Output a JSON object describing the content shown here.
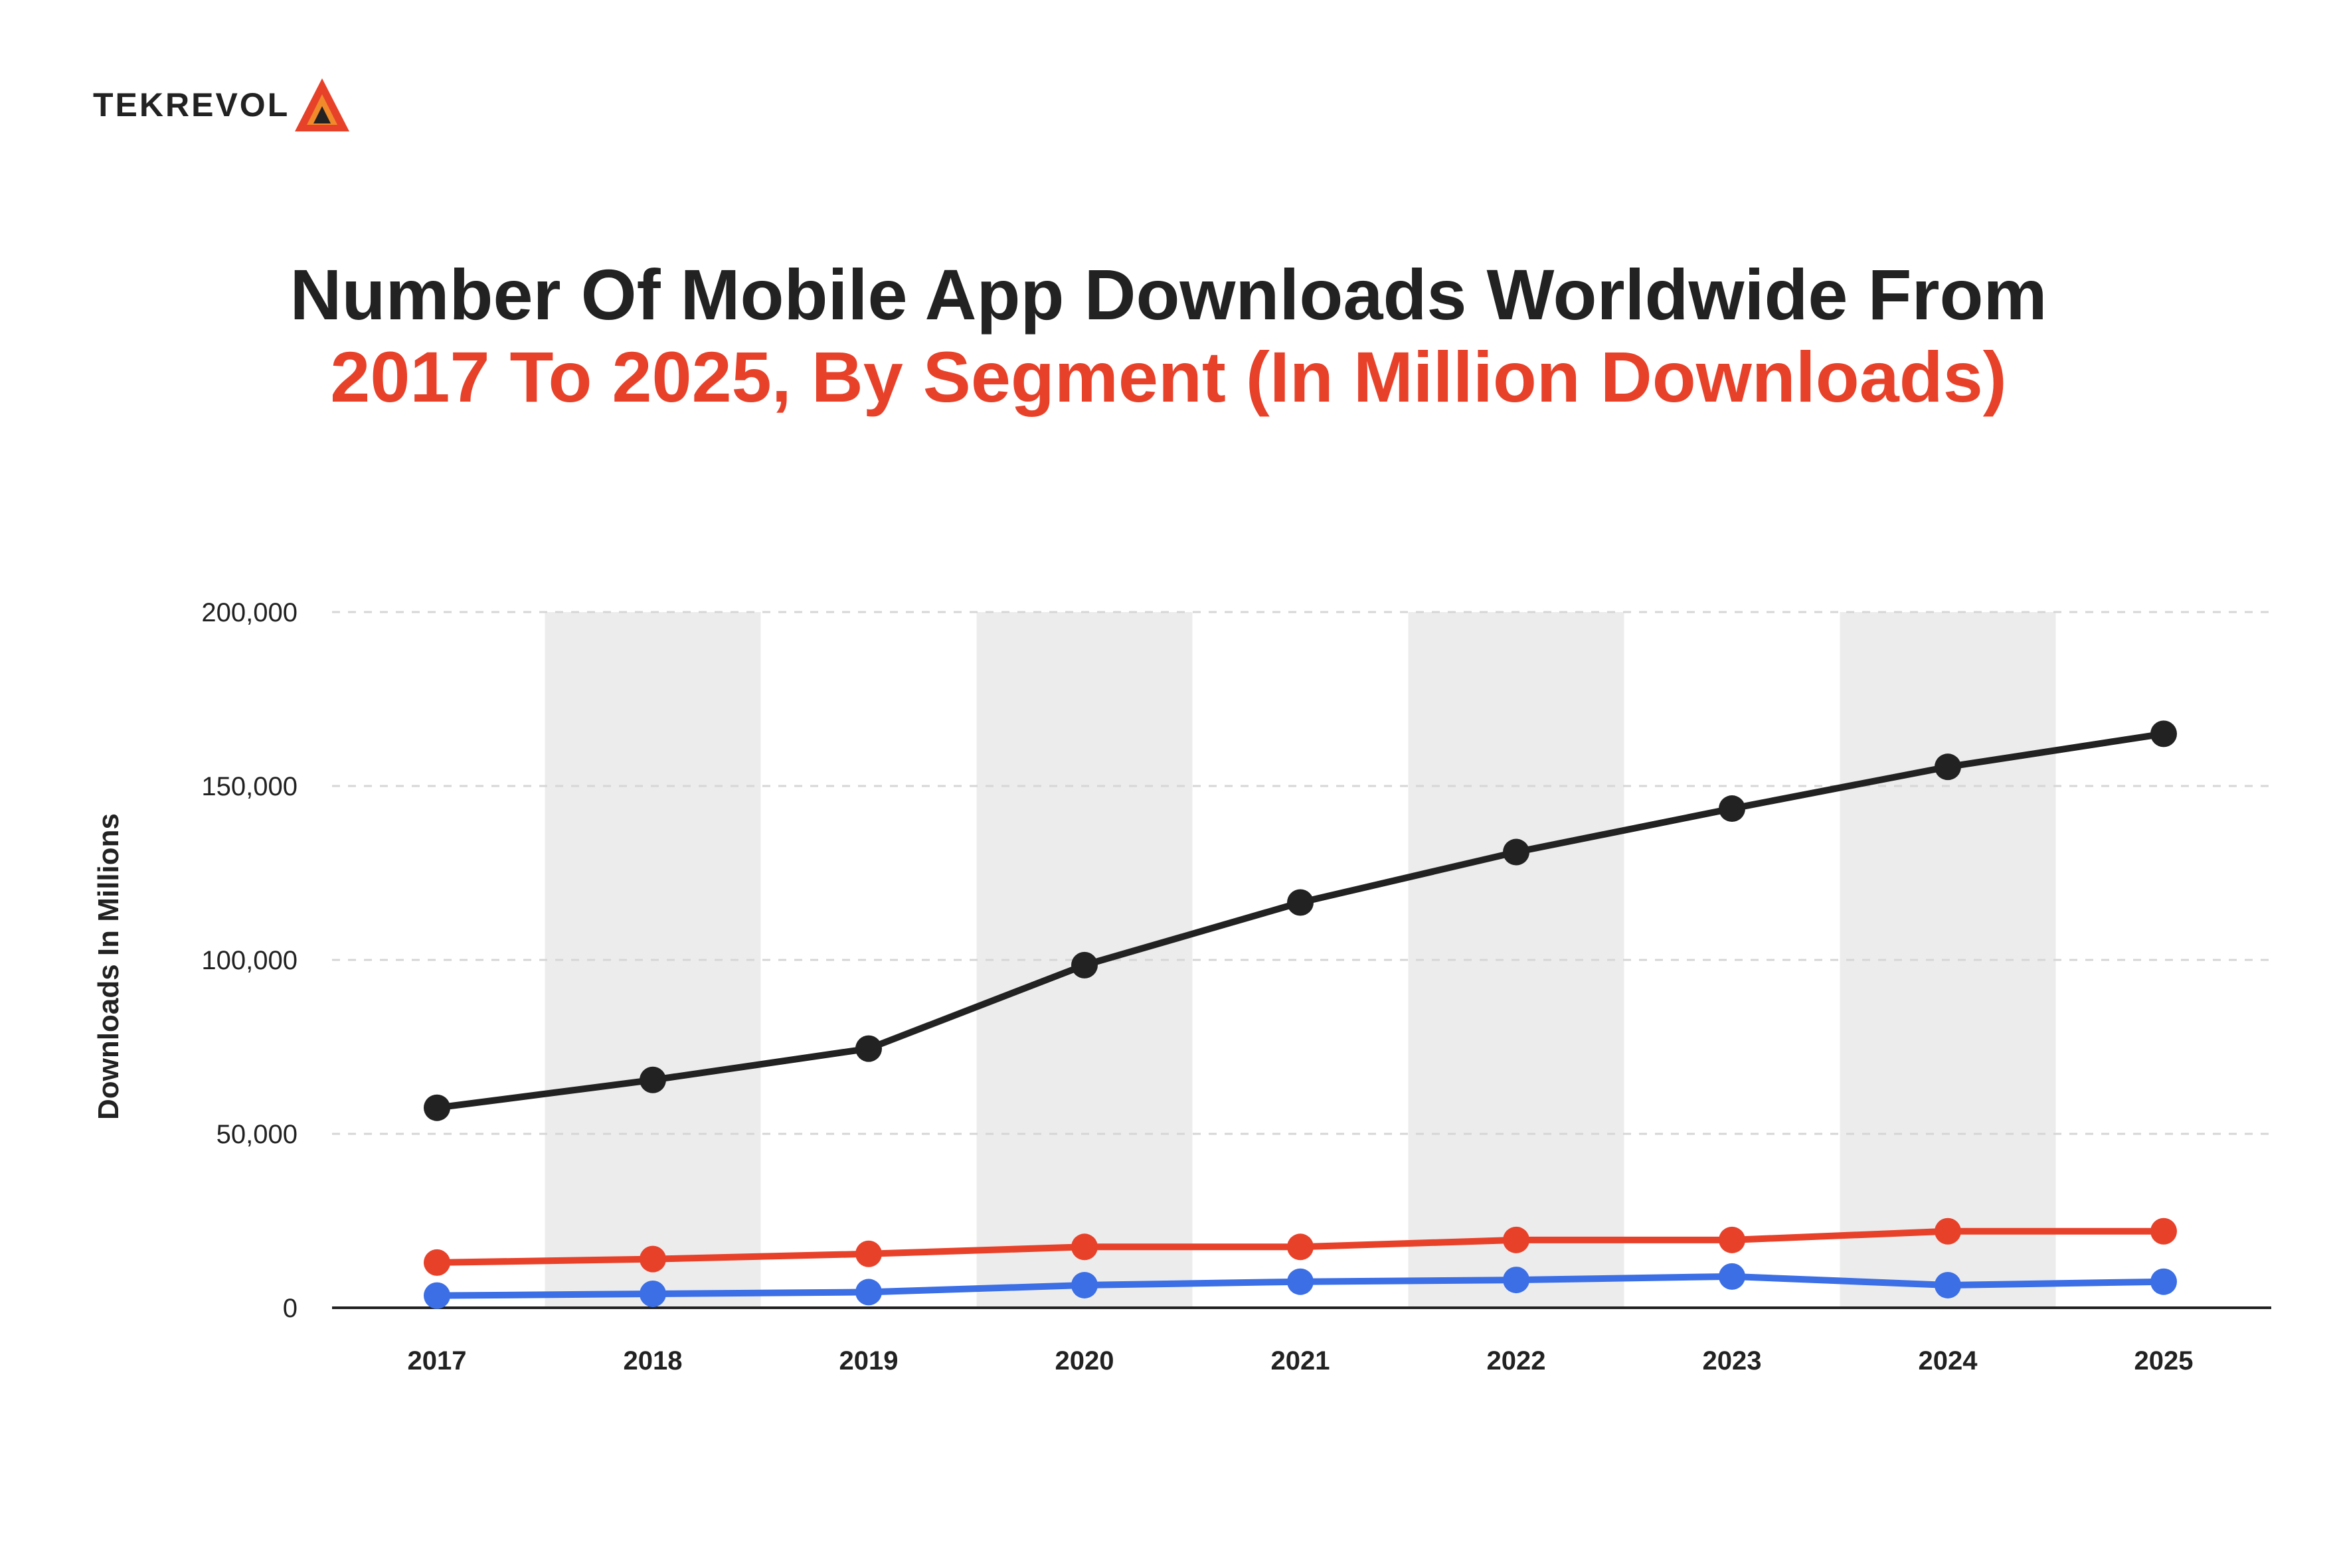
{
  "brand": {
    "name": "TEKREVOL",
    "accent": "#e8412a"
  },
  "title": {
    "line1": "Number Of Mobile App Downloads Worldwide From",
    "line2": "2017 To 2025, By Segment (In Million Downloads)"
  },
  "chart_data": {
    "type": "line",
    "title": "Number Of Mobile App Downloads Worldwide From 2017 To 2025, By Segment (In Million Downloads)",
    "xlabel": "",
    "ylabel": "Downloads In Millions",
    "ylim": [
      0,
      200000
    ],
    "yticks": [
      0,
      50000,
      100000,
      150000,
      200000
    ],
    "ytick_labels": [
      "0",
      "50,000",
      "100,000",
      "150,000",
      "200,000"
    ],
    "categories": [
      "2017",
      "2018",
      "2019",
      "2020",
      "2021",
      "2022",
      "2023",
      "2024",
      "2025"
    ],
    "grid": true,
    "alternating_bands": true,
    "series": [
      {
        "color": "#222222",
        "values": [
          57500,
          65500,
          74500,
          98500,
          116500,
          131000,
          143500,
          155500,
          165000
        ]
      },
      {
        "color": "#e8412a",
        "values": [
          13000,
          14000,
          15500,
          17500,
          17500,
          19500,
          19500,
          22000,
          22000
        ]
      },
      {
        "color": "#3c6fe6",
        "values": [
          3500,
          4000,
          4500,
          6500,
          7500,
          8000,
          9000,
          6500,
          7500
        ]
      }
    ]
  }
}
